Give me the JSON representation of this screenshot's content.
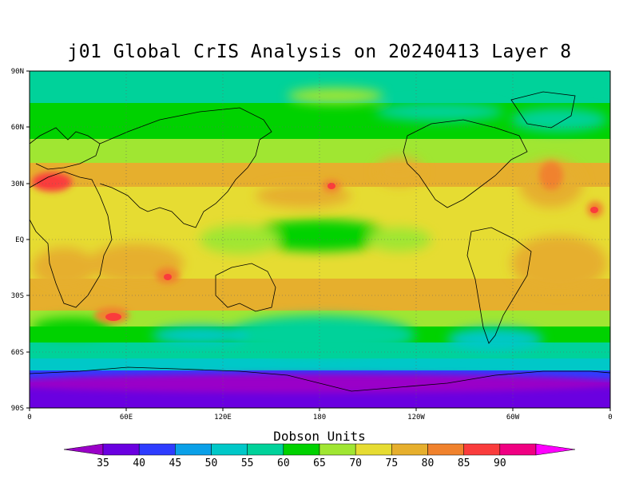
{
  "title": "j01 Global CrIS Analysis on 20240413 Layer 8",
  "map": {
    "lat_ticks": [
      "90N",
      "60N",
      "30N",
      "EQ",
      "30S",
      "60S",
      "90S"
    ],
    "lon_ticks": [
      "0",
      "60E",
      "120E",
      "180",
      "120W",
      "60W",
      "0"
    ],
    "gridlines": true,
    "projection": "cylindrical-equidistant"
  },
  "colorbar": {
    "title": "Dobson Units",
    "labels": [
      "35",
      "40",
      "45",
      "50",
      "55",
      "60",
      "65",
      "70",
      "75",
      "80",
      "85",
      "90"
    ],
    "colors": [
      "#9a00c8",
      "#6a00e0",
      "#2e3cff",
      "#0aa0e8",
      "#00c8c8",
      "#00d29a",
      "#00d200",
      "#a0e632",
      "#e6dc32",
      "#e6af2d",
      "#f0822d",
      "#fa3c3c",
      "#f00082",
      "#ff00ff"
    ]
  },
  "chart_data": {
    "type": "heatmap",
    "title": "j01 Global CrIS Analysis on 20240413 Layer 8",
    "units": "Dobson Units",
    "xlim": [
      0,
      360
    ],
    "ylim": [
      -90,
      90
    ],
    "levels": [
      35,
      40,
      45,
      50,
      55,
      60,
      65,
      70,
      75,
      80,
      85,
      90
    ]
  }
}
